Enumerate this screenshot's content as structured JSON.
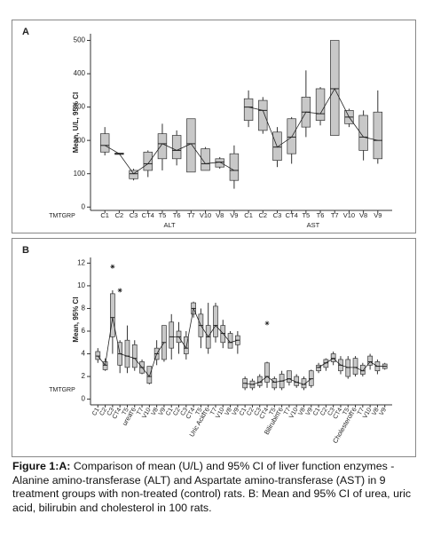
{
  "chart_data": [
    {
      "type": "box",
      "panel": "A",
      "y_label": "Mean, U/L, 95% CI",
      "x_label": "TMTGRP",
      "ylim": [
        -10,
        520
      ],
      "yticks": [
        0,
        100,
        200,
        300,
        400,
        500
      ],
      "color": "#c8c8c8",
      "series": [
        {
          "name": "ALT",
          "categories": [
            "C1",
            "C2",
            "C3",
            "CT4",
            "T5",
            "T6",
            "T7",
            "V10",
            "V8",
            "V9"
          ],
          "low": [
            155,
            158,
            80,
            90,
            110,
            125,
            105,
            110,
            115,
            55
          ],
          "q1": [
            165,
            158,
            85,
            110,
            145,
            145,
            105,
            110,
            120,
            80
          ],
          "median": [
            185,
            160,
            100,
            130,
            190,
            170,
            190,
            130,
            135,
            110
          ],
          "q3": [
            220,
            162,
            110,
            165,
            220,
            215,
            265,
            175,
            145,
            160
          ],
          "high": [
            240,
            162,
            115,
            170,
            250,
            230,
            265,
            180,
            150,
            185
          ]
        },
        {
          "name": "AST",
          "categories": [
            "C1",
            "C2",
            "C3",
            "CT4",
            "T5",
            "T6",
            "T7",
            "V10",
            "V8",
            "V9"
          ],
          "low": [
            240,
            220,
            120,
            130,
            210,
            245,
            215,
            240,
            140,
            130
          ],
          "q1": [
            260,
            230,
            140,
            160,
            240,
            260,
            215,
            250,
            170,
            145
          ],
          "median": [
            300,
            290,
            180,
            210,
            285,
            280,
            355,
            270,
            210,
            200
          ],
          "q3": [
            325,
            320,
            225,
            265,
            330,
            355,
            500,
            290,
            275,
            285
          ],
          "high": [
            350,
            330,
            240,
            270,
            410,
            360,
            500,
            295,
            290,
            350
          ]
        }
      ]
    },
    {
      "type": "box",
      "panel": "B",
      "y_label": "Mean, 95% CI",
      "x_label": "TMTGRP",
      "ylim": [
        -0.5,
        12.5
      ],
      "yticks": [
        0,
        2,
        4,
        6,
        8,
        10,
        12
      ],
      "color": "#c8c8c8",
      "series": [
        {
          "name": "urea",
          "categories": [
            "C1",
            "C2",
            "C3",
            "CT4",
            "T5",
            "T6",
            "T7",
            "V10",
            "V8",
            "V9"
          ],
          "low": [
            3.2,
            2.5,
            4.0,
            2.3,
            2.3,
            2.5,
            2.2,
            1.3,
            3.0,
            3.3
          ],
          "q1": [
            3.5,
            2.6,
            5.5,
            3.0,
            2.8,
            2.8,
            2.3,
            1.4,
            3.5,
            3.5
          ],
          "median": [
            3.8,
            3.0,
            7.2,
            4.0,
            3.8,
            3.6,
            2.8,
            2.0,
            4.0,
            5.0
          ],
          "q3": [
            4.2,
            3.3,
            9.3,
            5.0,
            5.2,
            4.8,
            3.3,
            2.9,
            4.5,
            6.5
          ],
          "high": [
            4.5,
            3.6,
            9.6,
            5.2,
            6.5,
            5.2,
            3.5,
            2.9,
            5.2,
            6.5
          ],
          "outliers": [
            {
              "category": 2,
              "value": 11.7
            },
            {
              "category": 3,
              "value": 9.6
            }
          ]
        },
        {
          "name": "Uric Acid",
          "categories": [
            "C1",
            "C2",
            "C3",
            "CT4",
            "T5",
            "T6",
            "T7",
            "V10",
            "V8",
            "V9"
          ],
          "low": [
            3.5,
            4.0,
            3.5,
            7.2,
            4.5,
            4.0,
            5.0,
            4.5,
            4.5,
            4.0
          ],
          "q1": [
            4.5,
            5.0,
            4.0,
            7.5,
            5.5,
            4.5,
            5.5,
            5.0,
            4.5,
            4.8
          ],
          "median": [
            5.5,
            5.5,
            4.5,
            8.0,
            6.5,
            5.5,
            6.5,
            5.8,
            5.0,
            5.2
          ],
          "q3": [
            6.8,
            6.0,
            5.5,
            8.5,
            7.5,
            6.5,
            8.2,
            6.5,
            5.8,
            5.6
          ],
          "high": [
            7.5,
            6.8,
            6.0,
            8.6,
            8.0,
            8.5,
            8.5,
            7.0,
            6.0,
            6.0
          ]
        },
        {
          "name": "Bilirubin",
          "categories": [
            "C1",
            "C2",
            "C3",
            "CT4",
            "T5",
            "T6",
            "T7",
            "V10",
            "V8",
            "V9"
          ],
          "low": [
            0.8,
            0.8,
            1.0,
            1.0,
            0.8,
            0.8,
            1.2,
            1.0,
            0.8,
            1.0
          ],
          "q1": [
            1.0,
            1.0,
            1.2,
            1.5,
            1.0,
            1.0,
            1.5,
            1.2,
            1.0,
            1.2
          ],
          "median": [
            1.4,
            1.3,
            1.5,
            2.0,
            1.5,
            1.6,
            1.8,
            1.5,
            1.3,
            1.8
          ],
          "q3": [
            1.8,
            1.6,
            2.0,
            3.2,
            1.8,
            2.2,
            2.5,
            2.0,
            1.8,
            2.5
          ],
          "high": [
            2.0,
            1.8,
            2.2,
            3.3,
            2.0,
            2.5,
            2.5,
            2.2,
            2.0,
            2.6
          ],
          "outliers": [
            {
              "category": 3,
              "value": 6.7
            }
          ]
        },
        {
          "name": "Cholesterol",
          "categories": [
            "C1",
            "C2",
            "C3",
            "CT4",
            "T5",
            "T6",
            "T7",
            "V10",
            "V8",
            "V9"
          ],
          "low": [
            2.3,
            2.5,
            3.0,
            2.2,
            1.8,
            2.0,
            2.0,
            2.6,
            2.2,
            2.6
          ],
          "q1": [
            2.5,
            2.8,
            3.3,
            2.5,
            2.0,
            2.2,
            2.2,
            3.0,
            2.5,
            2.7
          ],
          "median": [
            2.8,
            3.2,
            3.6,
            3.0,
            2.8,
            2.8,
            2.5,
            3.3,
            2.9,
            2.9
          ],
          "q3": [
            3.0,
            3.5,
            4.0,
            3.5,
            3.5,
            3.6,
            3.0,
            3.8,
            3.3,
            3.1
          ],
          "high": [
            3.2,
            3.6,
            4.2,
            3.8,
            3.8,
            3.8,
            3.2,
            4.0,
            3.5,
            3.2
          ]
        }
      ]
    }
  ],
  "caption": {
    "label": "Figure 1:A:",
    "text": "Comparison of mean (U/L) and 95% CI of liver function enzymes - Alanine amino-transferase (ALT) and Aspartate amino-transferase (AST) in 9 treatment groups with non-treated (control) rats. B: Mean and 95% CI of urea, uric acid, bilirubin and cholesterol in 100 rats."
  }
}
